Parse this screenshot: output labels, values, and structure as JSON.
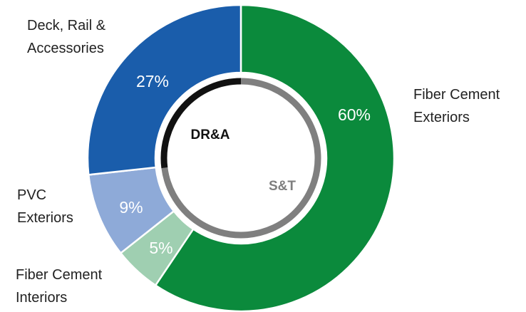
{
  "chart_data": {
    "type": "donut",
    "categories": [
      "Fiber Cement Exteriors",
      "Fiber Cement Interiors",
      "PVC Exteriors",
      "Deck, Rail & Accessories"
    ],
    "values": [
      60,
      5,
      9,
      27
    ],
    "value_labels": [
      "60%",
      "5%",
      "9%",
      "27%"
    ],
    "colors": [
      "#0b8a3c",
      "#9fcfb1",
      "#8eaad8",
      "#1a5dab"
    ],
    "inner_ring": {
      "categories": [
        "S&T",
        "DR&A"
      ],
      "values": [
        73,
        27
      ],
      "colors": [
        "#7f7f7f",
        "#111111"
      ]
    }
  }
}
